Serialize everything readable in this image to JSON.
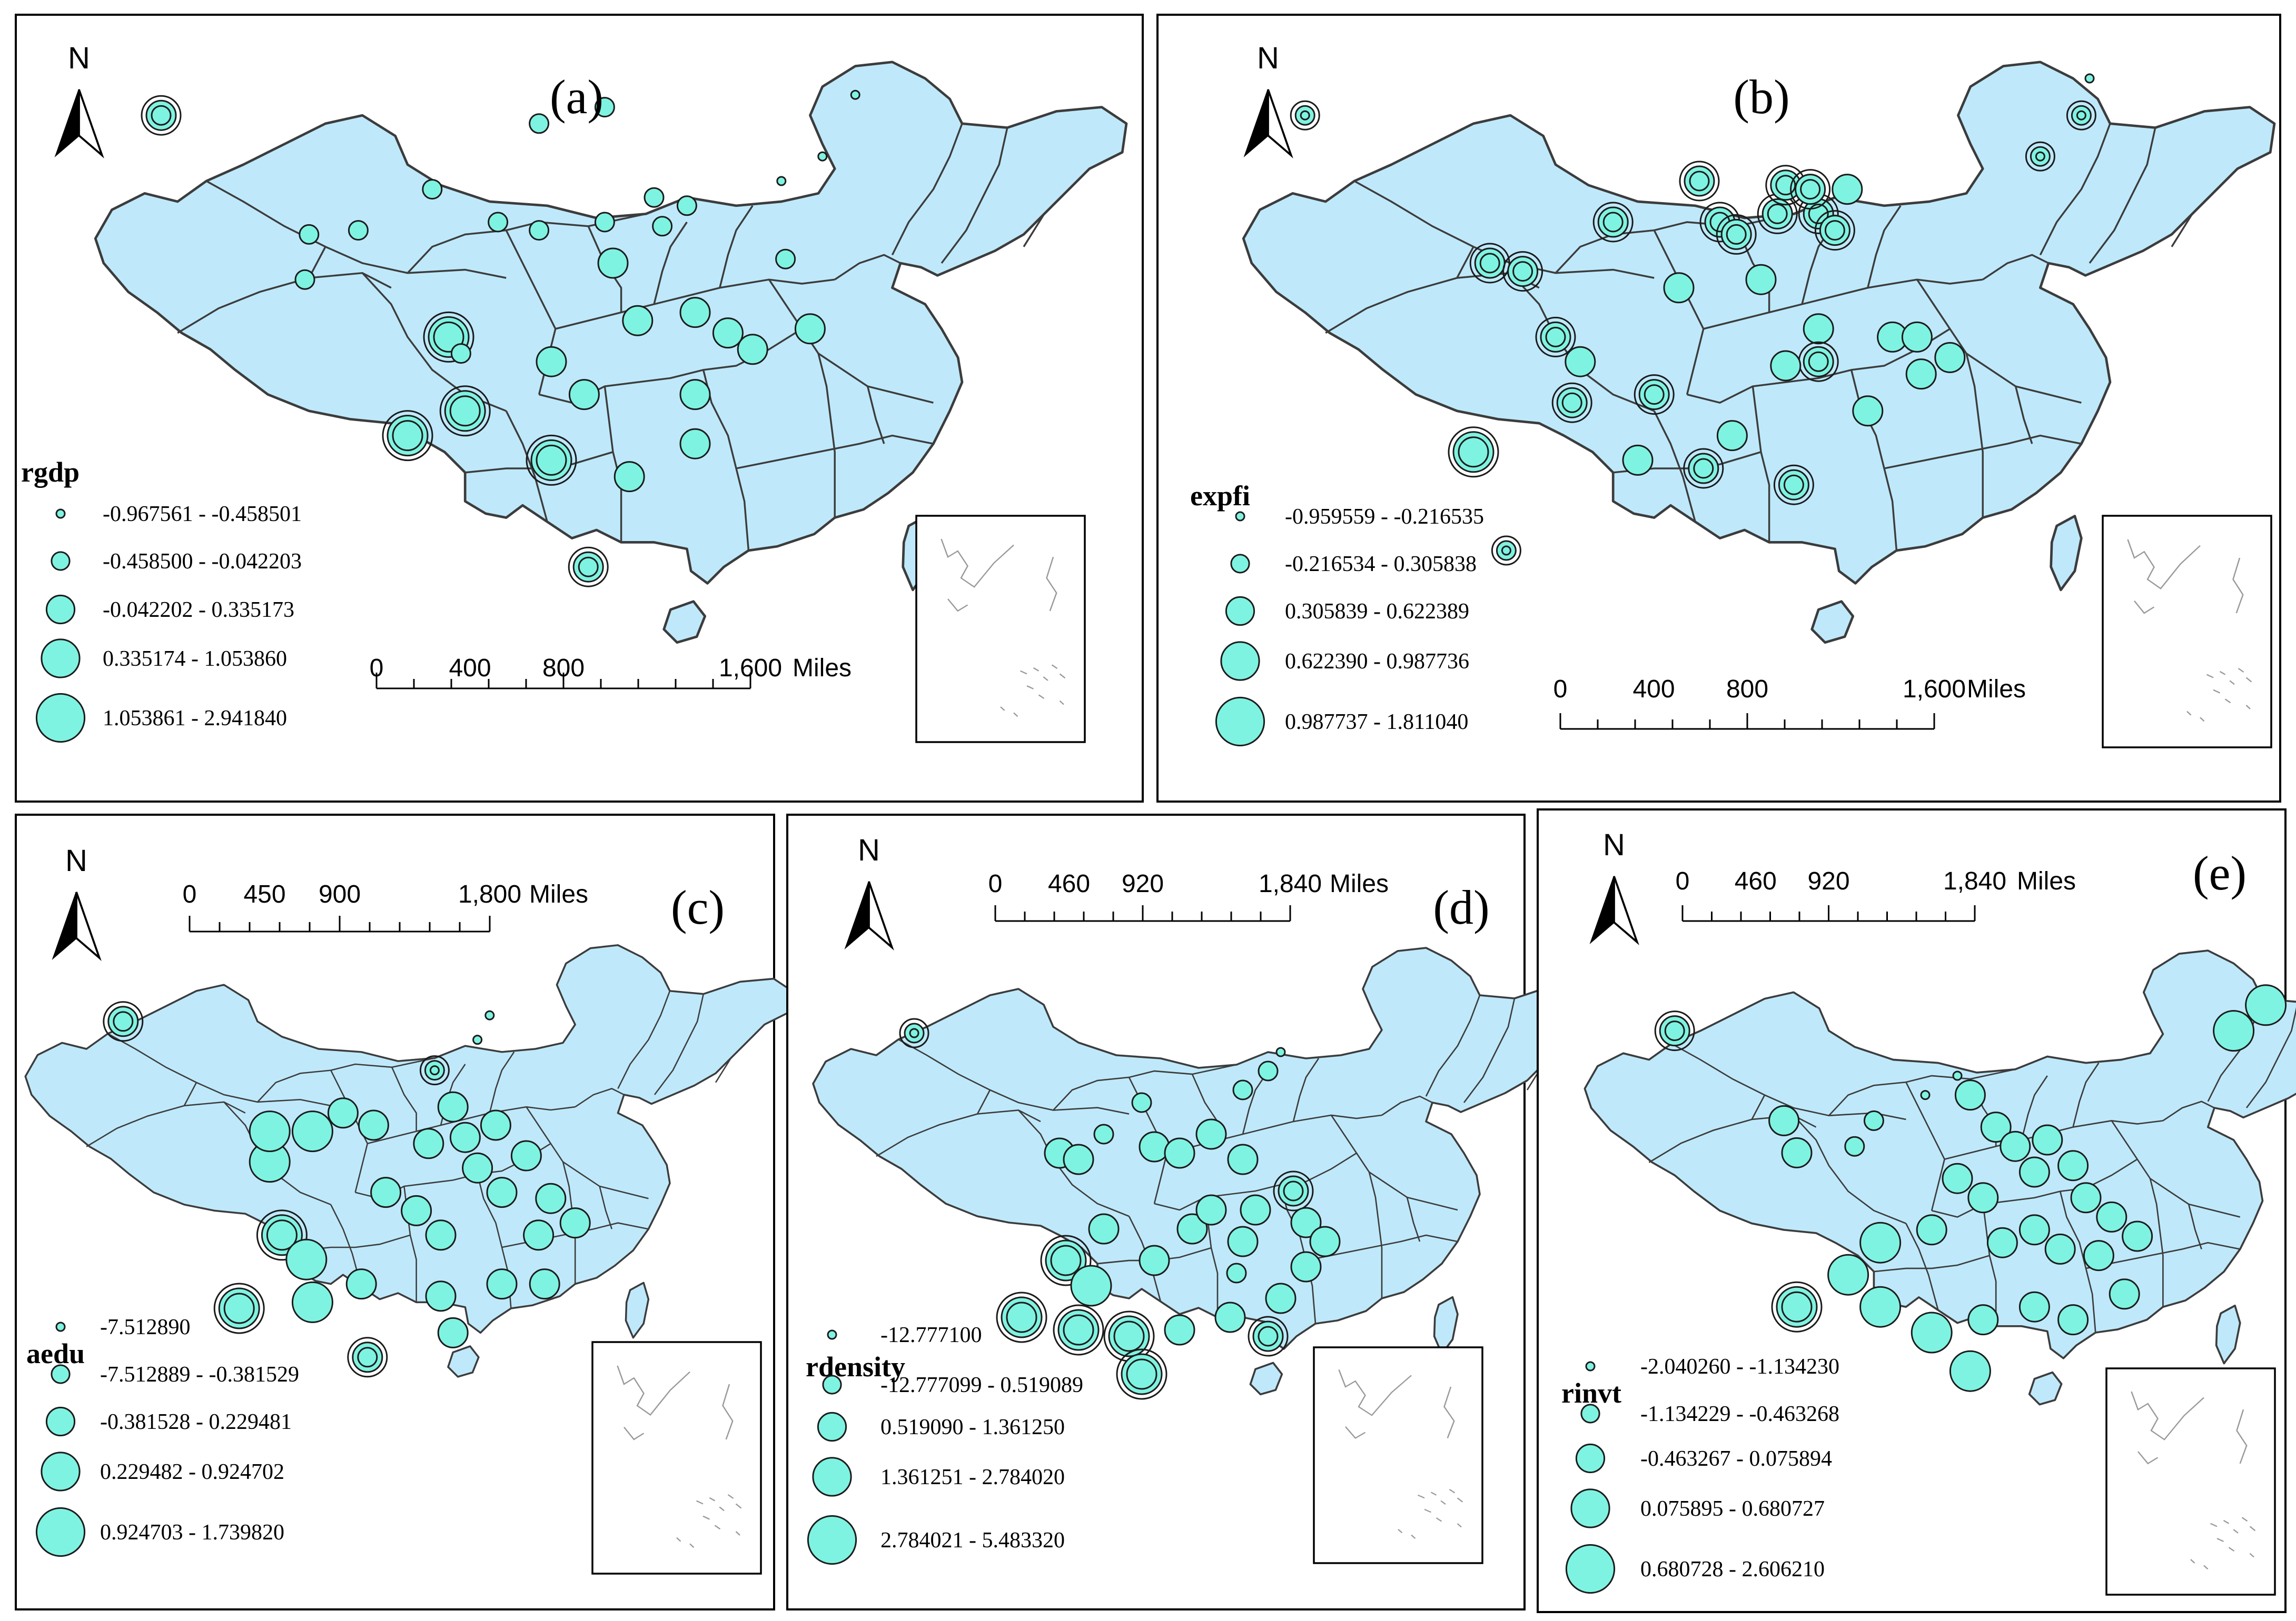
{
  "panels": [
    {
      "id": "a",
      "label": "(a)",
      "variable": "rgdp",
      "legend": [
        "-0.967561 - -0.458501",
        "-0.458500 - -0.042203",
        "-0.042202 - 0.335173",
        "0.335174 - 1.053860",
        "1.053861 - 2.941840"
      ],
      "scale": {
        "ticks": [
          "0",
          "400",
          "800",
          "1,600"
        ],
        "unit": "Miles"
      }
    },
    {
      "id": "b",
      "label": "(b)",
      "variable": "expfi",
      "legend": [
        "-0.959559 - -0.216535",
        "-0.216534 - 0.305838",
        "0.305839 - 0.622389",
        "0.622390 - 0.987736",
        "0.987737 - 1.811040"
      ],
      "scale": {
        "ticks": [
          "0",
          "400",
          "800",
          "1,600"
        ],
        "unit": "Miles"
      }
    },
    {
      "id": "c",
      "label": "(c)",
      "variable": "aedu",
      "legend": [
        "-7.512890",
        "-7.512889 - -0.381529",
        "-0.381528 - 0.229481",
        "0.229482 - 0.924702",
        "0.924703 - 1.739820"
      ],
      "scale": {
        "ticks": [
          "0",
          "450",
          "900",
          "1,800"
        ],
        "unit": "Miles"
      }
    },
    {
      "id": "d",
      "label": "(d)",
      "variable": "rdensity",
      "legend": [
        "-12.777100",
        "-12.777099 - 0.519089",
        "0.519090 - 1.361250",
        "1.361251 - 2.784020",
        "2.784021 - 5.483320"
      ],
      "scale": {
        "ticks": [
          "0",
          "460",
          "920",
          "1,840"
        ],
        "unit": "Miles"
      }
    },
    {
      "id": "e",
      "label": "(e)",
      "variable": "rinvt",
      "legend": [
        "-2.040260 - -1.134230",
        "-1.134229 - -0.463268",
        "-0.463267 - 0.075894",
        "0.075895 - 0.680727",
        "0.680728 - 2.606210"
      ],
      "scale": {
        "ticks": [
          "0",
          "460",
          "920",
          "1,840"
        ],
        "unit": "Miles"
      }
    }
  ],
  "north_label": "N",
  "colors": {
    "land": "#bfe9fb",
    "symbol": "#7ff3e1",
    "outline": "#3c3c3c"
  }
}
